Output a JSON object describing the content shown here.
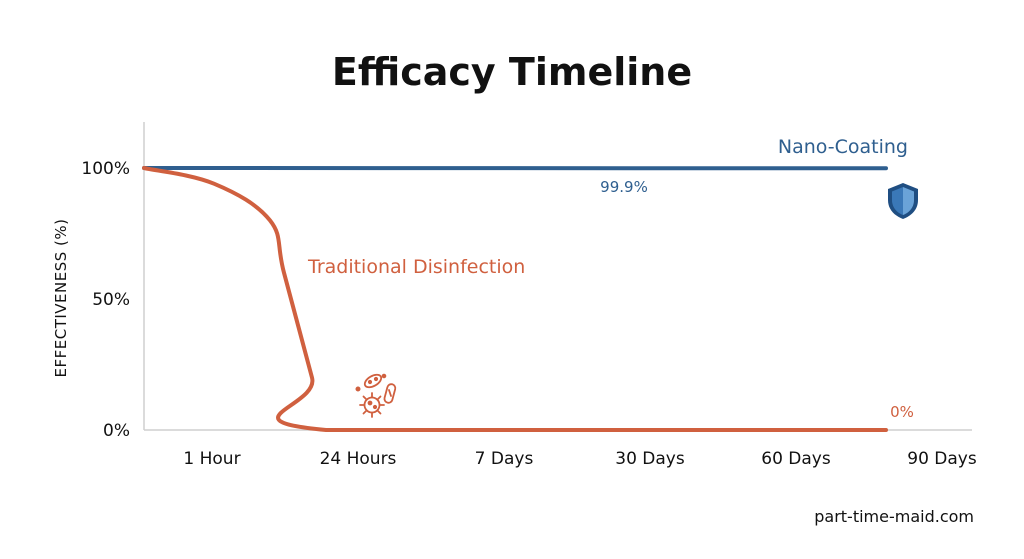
{
  "chart_data": {
    "type": "line",
    "title": "Efficacy Timeline",
    "ylabel": "EFFECTIVENESS (%)",
    "xlabel": "",
    "categories": [
      "1 Hour",
      "24 Hours",
      "7 Days",
      "30 Days",
      "60 Days",
      "90 Days"
    ],
    "y_ticks": [
      "100%",
      "50%",
      "0%"
    ],
    "ylim": [
      0,
      100
    ],
    "grid": false,
    "series": [
      {
        "name": "Nano-Coating",
        "color": "#2f5f8f",
        "x": [
          0,
          5.3
        ],
        "y": [
          100,
          99.9
        ],
        "data_label": "99.9%",
        "icon": "shield-icon"
      },
      {
        "name": "Traditional Disinfection",
        "color": "#d0603f",
        "x": [
          0,
          0.5,
          0.9,
          1.0,
          1.2,
          1.3,
          5.3
        ],
        "y": [
          100,
          94,
          80,
          60,
          20,
          0,
          0
        ],
        "data_label": "0%",
        "icon": "bacteria-icon"
      }
    ]
  },
  "footer": {
    "source": "part-time-maid.com"
  }
}
